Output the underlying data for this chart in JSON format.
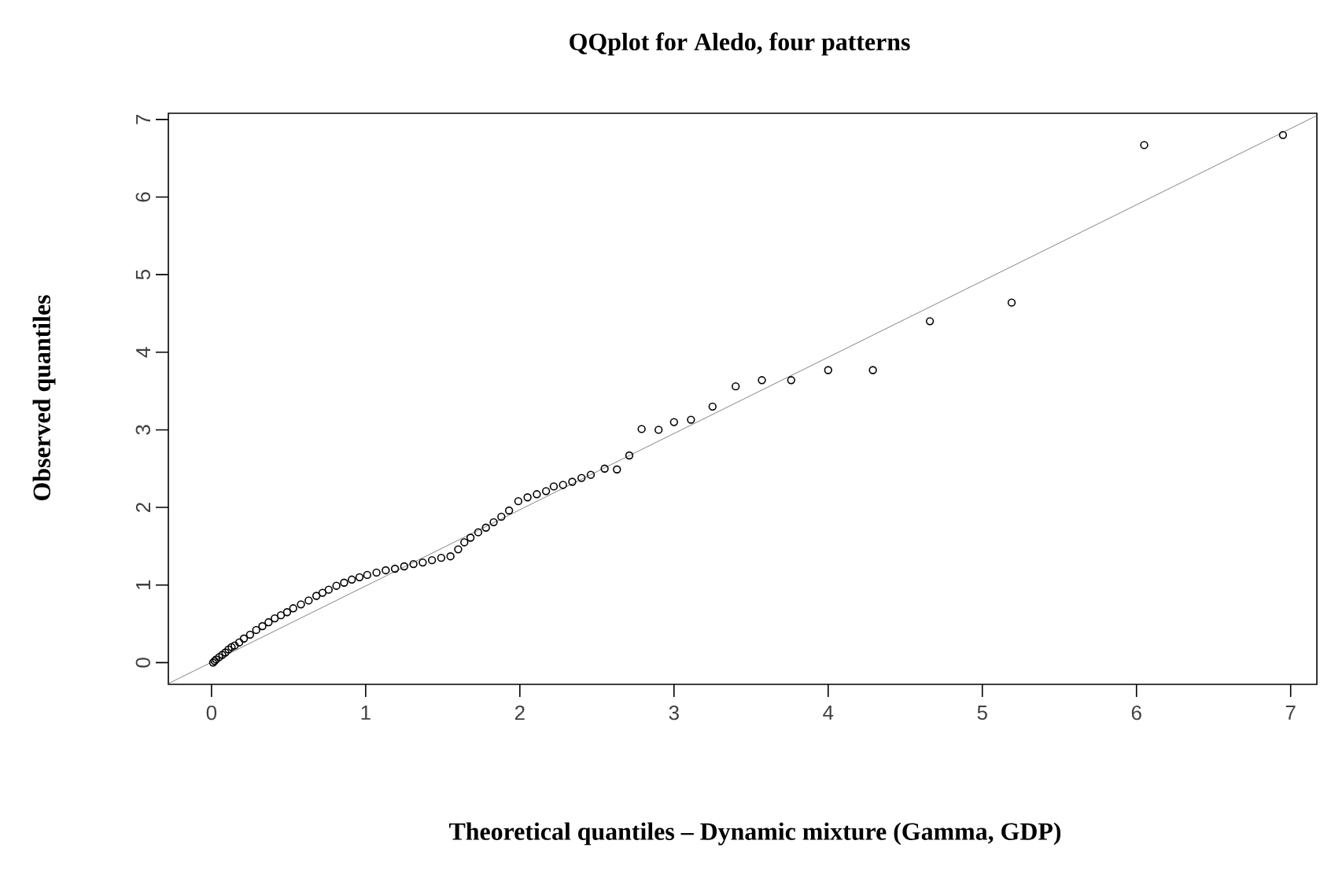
{
  "chart_data": {
    "type": "scatter",
    "title": "QQplot for Aledo, four patterns",
    "xlabel": "Theoretical quantiles – Dynamic mixture (Gamma, GDP)",
    "ylabel": "Observed quantiles",
    "xlim": [
      -0.28,
      7.17
    ],
    "ylim": [
      -0.28,
      7.08
    ],
    "xticks": [
      0,
      1,
      2,
      3,
      4,
      5,
      6,
      7
    ],
    "yticks": [
      0,
      1,
      2,
      3,
      4,
      5,
      6,
      7
    ],
    "grid": false,
    "series": [
      {
        "marker": "circle",
        "color": "#000000",
        "x": [
          0.01,
          0.02,
          0.03,
          0.05,
          0.07,
          0.09,
          0.11,
          0.13,
          0.15,
          0.18,
          0.21,
          0.25,
          0.29,
          0.33,
          0.37,
          0.41,
          0.45,
          0.49,
          0.53,
          0.58,
          0.63,
          0.68,
          0.72,
          0.76,
          0.81,
          0.86,
          0.91,
          0.96,
          1.01,
          1.07,
          1.13,
          1.19,
          1.25,
          1.31,
          1.37,
          1.43,
          1.49,
          1.55,
          1.6,
          1.64,
          1.68,
          1.73,
          1.78,
          1.83,
          1.88,
          1.93,
          1.99,
          2.05,
          2.11,
          2.17,
          2.22,
          2.28,
          2.34,
          2.4,
          2.46,
          2.55,
          2.63,
          2.71,
          2.79,
          2.9,
          3.0,
          3.11,
          3.25,
          3.4,
          3.57,
          3.76,
          4.0,
          4.29,
          4.66,
          5.19,
          6.05,
          6.95
        ],
        "values": [
          0.0,
          0.02,
          0.04,
          0.07,
          0.1,
          0.13,
          0.17,
          0.2,
          0.22,
          0.26,
          0.31,
          0.36,
          0.42,
          0.47,
          0.52,
          0.57,
          0.61,
          0.65,
          0.7,
          0.75,
          0.8,
          0.86,
          0.9,
          0.94,
          0.99,
          1.03,
          1.07,
          1.1,
          1.13,
          1.16,
          1.19,
          1.21,
          1.24,
          1.27,
          1.29,
          1.32,
          1.35,
          1.37,
          1.46,
          1.55,
          1.61,
          1.68,
          1.74,
          1.81,
          1.88,
          1.96,
          2.08,
          2.13,
          2.17,
          2.21,
          2.27,
          2.29,
          2.33,
          2.38,
          2.42,
          2.5,
          2.49,
          2.67,
          3.01,
          3.0,
          3.1,
          3.13,
          3.3,
          3.56,
          3.64,
          3.64,
          3.77,
          3.77,
          4.4,
          4.64,
          6.67,
          6.8
        ]
      },
      {
        "type": "line",
        "marker": "none",
        "color": "#666666",
        "x": [
          -0.28,
          7.17
        ],
        "values": [
          -0.27,
          7.05
        ]
      }
    ]
  }
}
